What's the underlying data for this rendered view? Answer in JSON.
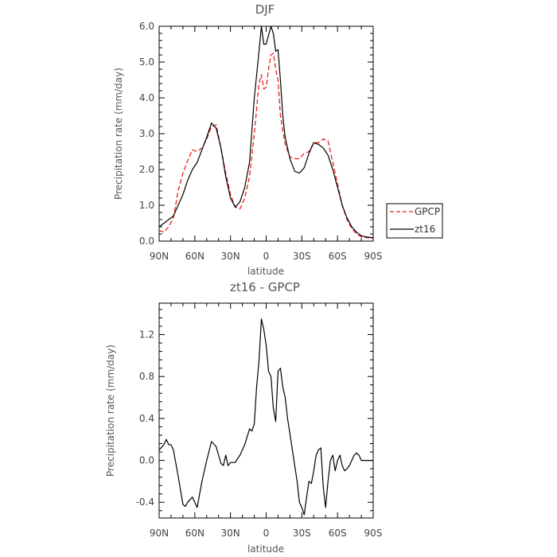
{
  "chart_data": [
    {
      "type": "line",
      "title": "DJF",
      "xlabel": "latitude",
      "ylabel": "Precipitation rate (mm/day)",
      "x_ticks": [
        "90N",
        "60N",
        "30N",
        "0",
        "30S",
        "60S",
        "90S"
      ],
      "y_ticks": [
        "0.0",
        "1.0",
        "2.0",
        "3.0",
        "4.0",
        "5.0",
        "6.0"
      ],
      "xlim": [
        90,
        -90
      ],
      "ylim": [
        0,
        6
      ],
      "legend_position": "right",
      "series": [
        {
          "name": "GPCP",
          "color": "#e8211c",
          "dash": "dashed",
          "x": [
            90,
            86,
            82,
            78,
            74,
            70,
            66,
            62,
            58,
            54,
            50,
            46,
            42,
            38,
            34,
            30,
            26,
            22,
            18,
            14,
            10,
            6,
            4,
            2,
            0,
            -2,
            -4,
            -6,
            -8,
            -10,
            -12,
            -14,
            -16,
            -20,
            -24,
            -28,
            -32,
            -36,
            -40,
            -44,
            -48,
            -52,
            -56,
            -60,
            -64,
            -68,
            -72,
            -76,
            -80,
            -84,
            -88,
            -90
          ],
          "y": [
            0.3,
            0.25,
            0.4,
            0.65,
            1.4,
            1.9,
            2.25,
            2.55,
            2.5,
            2.6,
            2.85,
            3.2,
            3.25,
            2.6,
            1.9,
            1.3,
            0.95,
            0.9,
            1.2,
            1.8,
            3.0,
            4.4,
            4.65,
            4.25,
            4.3,
            4.8,
            5.2,
            5.25,
            4.8,
            4.5,
            3.5,
            3.1,
            2.7,
            2.35,
            2.3,
            2.3,
            2.45,
            2.5,
            2.75,
            2.75,
            2.85,
            2.8,
            2.2,
            1.6,
            1.0,
            0.6,
            0.35,
            0.2,
            0.12,
            0.1,
            0.08,
            0.08
          ]
        },
        {
          "name": "zt16",
          "color": "#000000",
          "dash": "solid",
          "x": [
            90,
            86,
            82,
            78,
            74,
            70,
            66,
            62,
            58,
            54,
            50,
            46,
            42,
            38,
            34,
            30,
            26,
            22,
            18,
            14,
            10,
            6,
            4,
            2,
            0,
            -2,
            -4,
            -6,
            -8,
            -10,
            -12,
            -14,
            -16,
            -20,
            -24,
            -28,
            -32,
            -36,
            -40,
            -44,
            -48,
            -52,
            -56,
            -60,
            -64,
            -68,
            -72,
            -76,
            -80,
            -84,
            -88,
            -90
          ],
          "y": [
            0.4,
            0.5,
            0.6,
            0.7,
            1.0,
            1.3,
            1.7,
            2.0,
            2.2,
            2.55,
            2.9,
            3.3,
            3.15,
            2.6,
            1.8,
            1.2,
            0.95,
            1.1,
            1.5,
            2.2,
            4.0,
            5.3,
            6.0,
            5.5,
            5.5,
            5.75,
            6.0,
            5.8,
            5.3,
            5.35,
            4.5,
            3.5,
            2.9,
            2.3,
            1.95,
            1.9,
            2.05,
            2.45,
            2.75,
            2.7,
            2.6,
            2.4,
            2.0,
            1.5,
            1.0,
            0.65,
            0.4,
            0.25,
            0.15,
            0.12,
            0.1,
            0.1
          ]
        }
      ]
    },
    {
      "type": "line",
      "title": "zt16 - GPCP",
      "xlabel": "latitude",
      "ylabel": "Precipitation rate (mm/day)",
      "x_ticks": [
        "90N",
        "60N",
        "30N",
        "0",
        "30S",
        "60S",
        "90S"
      ],
      "y_ticks": [
        "-0.4",
        "0.0",
        "0.4",
        "0.8",
        "1.2"
      ],
      "xlim": [
        90,
        -90
      ],
      "ylim": [
        -0.55,
        1.5
      ],
      "series": [
        {
          "color": "#000000",
          "dash": "solid",
          "x": [
            90,
            86,
            84,
            82,
            80,
            78,
            74,
            70,
            68,
            66,
            62,
            58,
            54,
            50,
            46,
            42,
            40,
            38,
            36,
            34,
            32,
            30,
            26,
            22,
            18,
            14,
            12,
            10,
            8,
            6,
            4,
            2,
            0,
            -2,
            -4,
            -6,
            -8,
            -10,
            -12,
            -14,
            -16,
            -18,
            -20,
            -22,
            -24,
            -26,
            -28,
            -30,
            -32,
            -34,
            -36,
            -38,
            -40,
            -42,
            -44,
            -46,
            -48,
            -50,
            -52,
            -54,
            -56,
            -58,
            -60,
            -62,
            -64,
            -66,
            -68,
            -70,
            -72,
            -74,
            -76,
            -78,
            -80,
            -84,
            -88,
            -90
          ],
          "y": [
            0.1,
            0.15,
            0.2,
            0.15,
            0.15,
            0.1,
            -0.15,
            -0.42,
            -0.44,
            -0.4,
            -0.35,
            -0.45,
            -0.2,
            0.0,
            0.18,
            0.13,
            0.05,
            -0.03,
            -0.05,
            0.05,
            -0.05,
            -0.02,
            -0.02,
            0.05,
            0.15,
            0.3,
            0.28,
            0.35,
            0.7,
            0.95,
            1.35,
            1.25,
            1.1,
            0.85,
            0.8,
            0.5,
            0.37,
            0.85,
            0.88,
            0.7,
            0.6,
            0.4,
            0.25,
            0.1,
            -0.05,
            -0.2,
            -0.4,
            -0.45,
            -0.52,
            -0.35,
            -0.2,
            -0.22,
            -0.1,
            0.05,
            0.1,
            0.12,
            -0.25,
            -0.45,
            -0.2,
            0.0,
            0.05,
            -0.1,
            0.0,
            0.05,
            -0.05,
            -0.1,
            -0.08,
            -0.05,
            0.0,
            0.05,
            0.07,
            0.05,
            0.0,
            0.0,
            0.0,
            0.0
          ]
        }
      ]
    }
  ]
}
